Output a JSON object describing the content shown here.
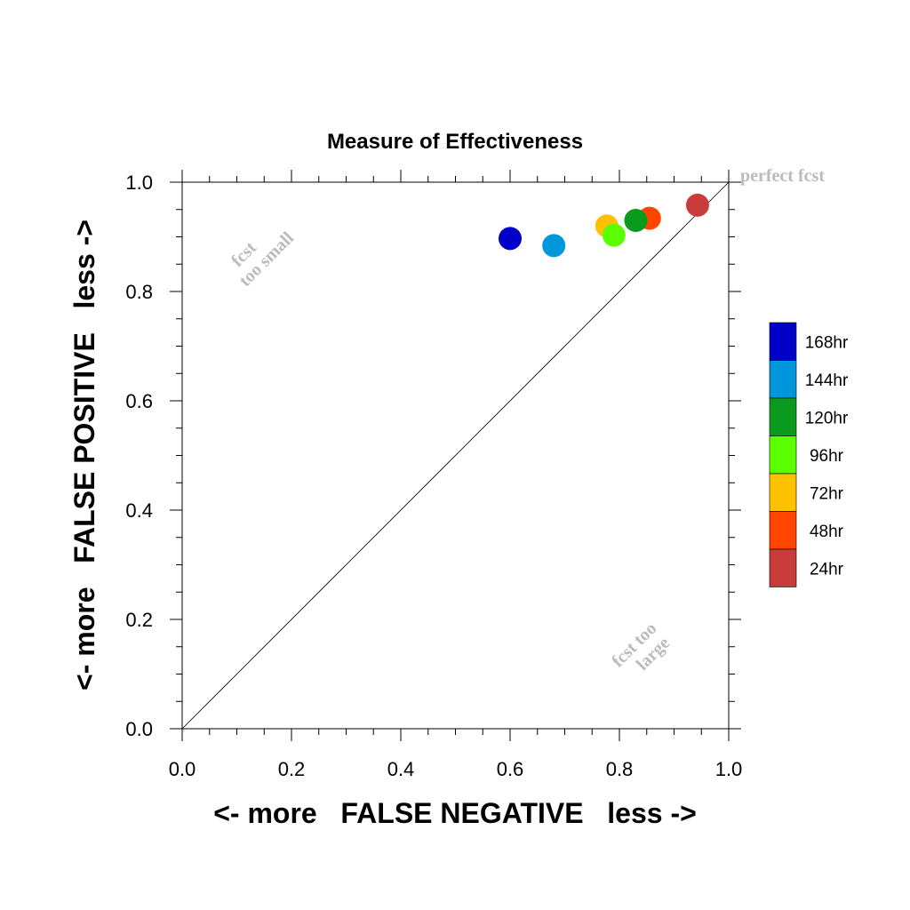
{
  "chart_data": {
    "type": "scatter",
    "title": "Measure of Effectiveness",
    "xlabel": "<- more   FALSE NEGATIVE   less ->",
    "ylabel": "<- more   FALSE POSITIVE   less ->",
    "xlim": [
      0.0,
      1.0
    ],
    "ylim": [
      0.0,
      1.0
    ],
    "x_ticks": [
      "0.0",
      "0.2",
      "0.4",
      "0.6",
      "0.8",
      "1.0"
    ],
    "y_ticks": [
      "0.0",
      "0.2",
      "0.4",
      "0.6",
      "0.8",
      "1.0"
    ],
    "grid": false,
    "reference_line": "diagonal y = x",
    "annotations": {
      "perfect": "perfect fcst",
      "too_small_line1": "fcst",
      "too_small_line2": "too small",
      "too_large_line1": "fcst too",
      "too_large_line2": "large"
    },
    "legend_position": "right",
    "series": [
      {
        "name": "24hr",
        "color": "#c83c3c",
        "x": 0.943,
        "y": 0.958
      },
      {
        "name": "48hr",
        "color": "#ff4500",
        "x": 0.855,
        "y": 0.934
      },
      {
        "name": "72hr",
        "color": "#ffc000",
        "x": 0.777,
        "y": 0.92
      },
      {
        "name": "96hr",
        "color": "#5aff00",
        "x": 0.79,
        "y": 0.903
      },
      {
        "name": "120hr",
        "color": "#0a9a1e",
        "x": 0.83,
        "y": 0.93
      },
      {
        "name": "144hr",
        "color": "#0096dc",
        "x": 0.68,
        "y": 0.884
      },
      {
        "name": "168hr",
        "color": "#0000c8",
        "x": 0.6,
        "y": 0.897
      }
    ],
    "legend_order": [
      "168hr",
      "144hr",
      "120hr",
      "96hr",
      "72hr",
      "48hr",
      "24hr"
    ]
  }
}
